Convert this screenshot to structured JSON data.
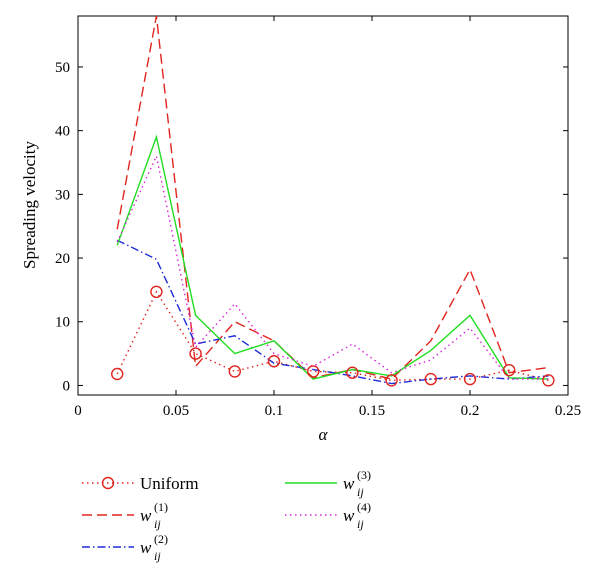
{
  "chart_data": {
    "type": "line",
    "title": "",
    "xlabel": "α",
    "ylabel": "Spreading velocity",
    "xlim": [
      0,
      0.25
    ],
    "ylim": [
      -1.5,
      58
    ],
    "xticks": [
      0,
      0.05,
      0.1,
      0.15,
      0.2,
      0.25
    ],
    "xtick_labels": [
      "0",
      "0.05",
      "0.1",
      "0.15",
      "0.2",
      "0.25"
    ],
    "yticks": [
      0,
      10,
      20,
      30,
      40,
      50
    ],
    "ytick_labels": [
      "0",
      "10",
      "20",
      "30",
      "40",
      "50"
    ],
    "grid": false,
    "legend_position": "below plot",
    "x": [
      0.02,
      0.04,
      0.06,
      0.08,
      0.1,
      0.12,
      0.14,
      0.16,
      0.18,
      0.2,
      0.22,
      0.24
    ],
    "series": [
      {
        "name": "Uniform",
        "legend": {
          "base": "Uniform",
          "sub": "",
          "sup": ""
        },
        "color": "#e0241e",
        "line_style": "dotted",
        "marker": "circle",
        "values": [
          1.8,
          14.7,
          5.0,
          2.2,
          3.8,
          2.2,
          2.0,
          0.8,
          1.0,
          1.0,
          2.4,
          0.8
        ]
      },
      {
        "name": "w_ij^(1)",
        "legend": {
          "base": "w",
          "sub": "ij",
          "sup": "(1)"
        },
        "color": "#e0241e",
        "line_style": "dashed",
        "marker": "none",
        "values": [
          24.5,
          58.0,
          3.0,
          10.0,
          7.0,
          1.2,
          2.5,
          1.0,
          7.0,
          18.2,
          2.0,
          2.8
        ]
      },
      {
        "name": "w_ij^(2)",
        "legend": {
          "base": "w",
          "sub": "ij",
          "sup": "(2)"
        },
        "color": "#1f2bd6",
        "line_style": "dashdot",
        "marker": "none",
        "values": [
          22.8,
          19.8,
          6.5,
          7.8,
          3.5,
          2.5,
          1.5,
          0.3,
          1.0,
          1.5,
          1.0,
          1.5
        ]
      },
      {
        "name": "w_ij^(3)",
        "legend": {
          "base": "w",
          "sub": "ij",
          "sup": "(3)"
        },
        "color": "#22dd22",
        "line_style": "solid",
        "marker": "none",
        "values": [
          22.0,
          39.0,
          11.0,
          5.0,
          7.0,
          1.0,
          2.5,
          1.5,
          5.5,
          11.0,
          1.2,
          1.0
        ]
      },
      {
        "name": "w_ij^(4)",
        "legend": {
          "base": "w",
          "sub": "ij",
          "sup": "(4)"
        },
        "color": "#dd22dd",
        "line_style": "dotted",
        "marker": "none",
        "values": [
          22.5,
          36.0,
          6.0,
          12.8,
          5.0,
          3.0,
          6.5,
          2.0,
          4.0,
          9.0,
          1.0,
          1.0
        ]
      }
    ]
  }
}
